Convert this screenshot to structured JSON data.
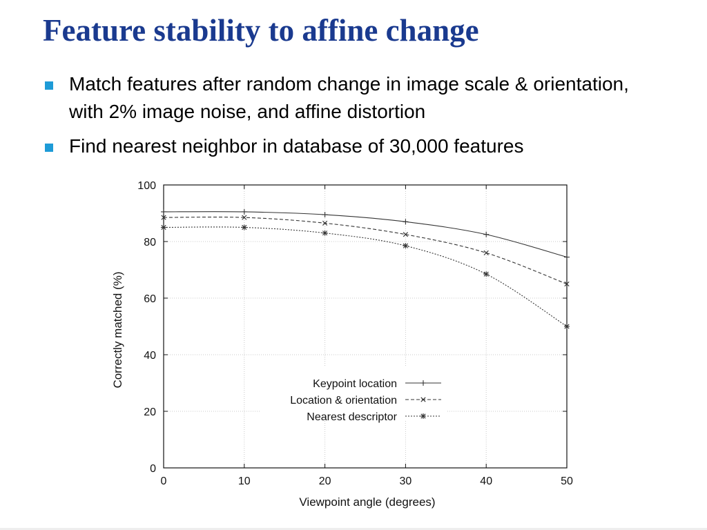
{
  "slide": {
    "title": "Feature stability to affine change",
    "bullets": [
      "Match features after random change in image scale & orientation, with 2% image noise, and affine distortion",
      "Find nearest neighbor in database of 30,000 features"
    ],
    "bullet_color": "#1e9bd7",
    "title_color": "#1a3a8f"
  },
  "chart_data": {
    "type": "line",
    "x": [
      0,
      10,
      20,
      30,
      40,
      50
    ],
    "series": [
      {
        "name": "Keypoint location",
        "values": [
          90.5,
          90.5,
          89.5,
          87,
          82.5,
          74.5
        ],
        "marker": "+",
        "dash": "solid"
      },
      {
        "name": "Location & orientation",
        "values": [
          88.5,
          88.5,
          86.5,
          82.5,
          76,
          65
        ],
        "marker": "x",
        "dash": "dashed"
      },
      {
        "name": "Nearest descriptor",
        "values": [
          85,
          85,
          83,
          78.5,
          68.5,
          50
        ],
        "marker": "*",
        "dash": "dotted"
      }
    ],
    "title": "",
    "xlabel": "Viewpoint angle (degrees)",
    "ylabel": "Correctly matched (%)",
    "xlim": [
      0,
      50
    ],
    "ylim": [
      0,
      100
    ],
    "xticks": [
      0,
      10,
      20,
      30,
      40,
      50
    ],
    "yticks": [
      0,
      20,
      40,
      60,
      80,
      100
    ],
    "grid": true,
    "legend_position": "bottom-right"
  }
}
